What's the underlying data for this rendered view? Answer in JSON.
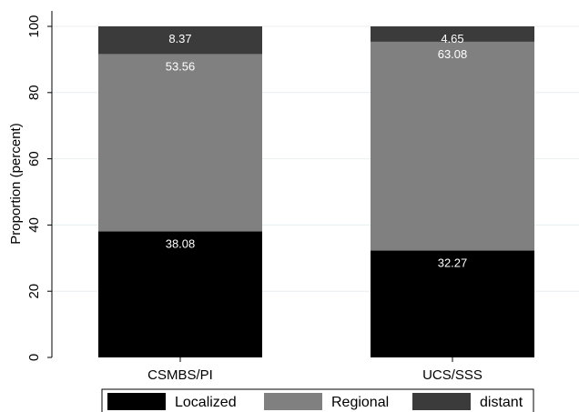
{
  "chart_data": {
    "type": "bar",
    "stacked": true,
    "categories": [
      "CSMBS/PI",
      "UCS/SSS"
    ],
    "series": [
      {
        "name": "Localized",
        "values": [
          38.08,
          32.27
        ],
        "color": "#000000"
      },
      {
        "name": "Regional",
        "values": [
          53.56,
          63.08
        ],
        "color": "#808080"
      },
      {
        "name": "distant",
        "values": [
          8.37,
          4.65
        ],
        "color": "#3b3b3b"
      }
    ],
    "ylabel": "Proportion (percent)",
    "ylim": [
      0,
      100
    ],
    "yticks": [
      "0",
      "20",
      "40",
      "60",
      "80",
      "100"
    ],
    "grid": true,
    "legend_position": "bottom"
  }
}
